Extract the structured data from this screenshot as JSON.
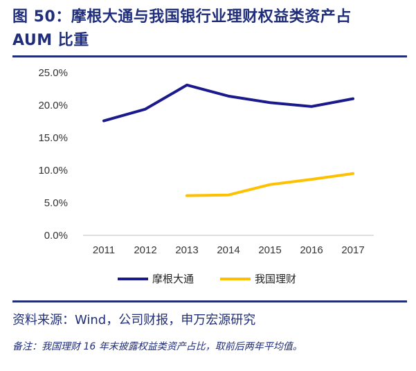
{
  "title": {
    "line1": "图 50：摩根大通与我国银行业理财权益类资产占",
    "line2": "AUM 比重"
  },
  "footer": {
    "source": "资料来源：Wind，公司财报，申万宏源研究",
    "note": "备注：我国理财 16 年末披露权益类资产占比，取前后两年平均值。"
  },
  "colors": {
    "brand": "#1f2d7a",
    "series_jpm": "#1a1a8c",
    "series_cn": "#ffc000"
  },
  "chart_data": {
    "type": "line",
    "x": [
      "2011",
      "2012",
      "2013",
      "2014",
      "2015",
      "2016",
      "2017"
    ],
    "ylim": [
      0,
      25
    ],
    "y_ticks": [
      "25.0%",
      "20.0%",
      "15.0%",
      "10.0%",
      "5.0%",
      "0.0%"
    ],
    "y_tick_values": [
      25,
      20,
      15,
      10,
      5,
      0
    ],
    "grid": false,
    "legend_position": "bottom",
    "series": [
      {
        "name": "摩根大通",
        "color": "#1a1a8c",
        "values": [
          17.6,
          19.4,
          23.1,
          21.4,
          20.4,
          19.8,
          21.0
        ]
      },
      {
        "name": "我国理财",
        "color": "#ffc000",
        "values": [
          null,
          null,
          6.1,
          6.2,
          7.8,
          8.6,
          9.5
        ]
      }
    ]
  }
}
